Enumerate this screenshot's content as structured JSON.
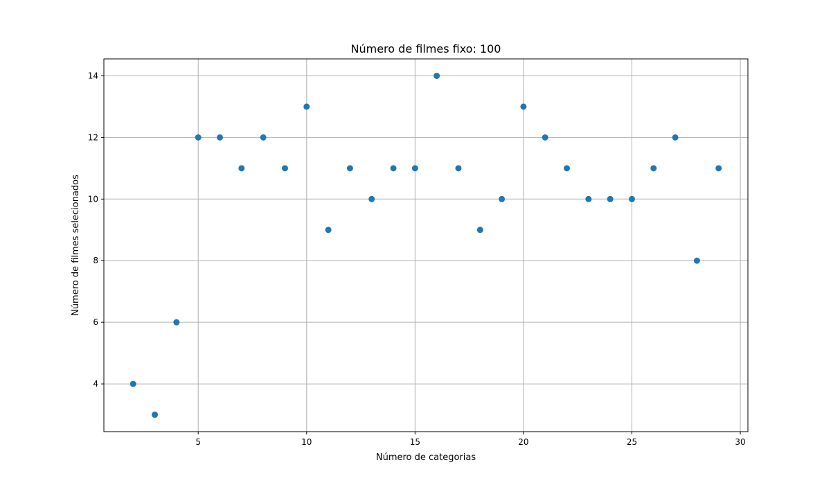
{
  "chart_data": {
    "type": "scatter",
    "title": "Número de filmes fixo: 100",
    "xlabel": "Número de categorias",
    "ylabel": "Número de filmes selecionados",
    "xlim": [
      0.65,
      30.35
    ],
    "ylim": [
      2.45,
      14.55
    ],
    "xticks": [
      5,
      10,
      15,
      20,
      25,
      30
    ],
    "yticks": [
      4,
      6,
      8,
      10,
      12,
      14
    ],
    "grid": true,
    "color": "#1f77b4",
    "points": [
      {
        "x": 2,
        "y": 4
      },
      {
        "x": 3,
        "y": 3
      },
      {
        "x": 4,
        "y": 6
      },
      {
        "x": 5,
        "y": 12
      },
      {
        "x": 6,
        "y": 12
      },
      {
        "x": 7,
        "y": 11
      },
      {
        "x": 8,
        "y": 12
      },
      {
        "x": 9,
        "y": 11
      },
      {
        "x": 10,
        "y": 13
      },
      {
        "x": 11,
        "y": 9
      },
      {
        "x": 12,
        "y": 11
      },
      {
        "x": 13,
        "y": 10
      },
      {
        "x": 14,
        "y": 11
      },
      {
        "x": 15,
        "y": 11
      },
      {
        "x": 16,
        "y": 14
      },
      {
        "x": 17,
        "y": 11
      },
      {
        "x": 18,
        "y": 9
      },
      {
        "x": 19,
        "y": 10
      },
      {
        "x": 20,
        "y": 13
      },
      {
        "x": 21,
        "y": 12
      },
      {
        "x": 22,
        "y": 11
      },
      {
        "x": 23,
        "y": 10
      },
      {
        "x": 24,
        "y": 10
      },
      {
        "x": 25,
        "y": 10
      },
      {
        "x": 26,
        "y": 11
      },
      {
        "x": 27,
        "y": 12
      },
      {
        "x": 28,
        "y": 8
      },
      {
        "x": 29,
        "y": 11
      }
    ]
  }
}
